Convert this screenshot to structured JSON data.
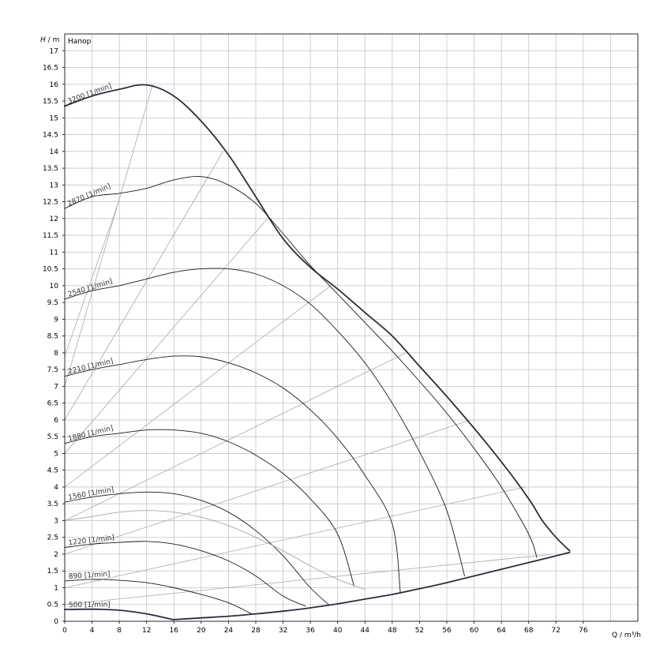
{
  "chart_data": {
    "type": "line",
    "panel_label": "Напор",
    "ylabel_symbol": "H",
    "ylabel_unit": "/ m",
    "xlabel": "Q / m³/h",
    "xlim": [
      0,
      84
    ],
    "ylim": [
      0,
      17.5
    ],
    "x_ticks": [
      0,
      4,
      8,
      12,
      16,
      20,
      24,
      28,
      32,
      36,
      40,
      44,
      48,
      52,
      56,
      60,
      64,
      68,
      72,
      76
    ],
    "y_ticks": [
      0,
      0.5,
      1,
      1.5,
      2,
      2.5,
      3,
      3.5,
      4,
      4.5,
      5,
      5.5,
      6,
      6.5,
      7,
      7.5,
      8,
      8.5,
      9,
      9.5,
      10,
      10.5,
      11,
      11.5,
      12,
      12.5,
      13,
      13.5,
      14,
      14.5,
      15,
      15.5,
      16,
      16.5,
      17
    ],
    "grid": true,
    "colors": {
      "speed_curve": "#1a1a1a",
      "envelope": "#2a2f3a",
      "efficiency_ray": "#a8a8a8",
      "grid": "#c4c4c4"
    },
    "series": [
      {
        "name": "3200 [1/min]",
        "kind": "speed",
        "x": [
          0,
          4,
          8,
          12,
          16,
          20,
          24,
          28,
          32,
          36,
          40,
          44,
          48,
          52,
          56,
          60,
          64,
          68,
          70,
          72,
          74
        ],
        "y": [
          15.35,
          15.65,
          15.85,
          15.98,
          15.65,
          14.9,
          13.9,
          12.65,
          11.4,
          10.55,
          9.9,
          9.2,
          8.5,
          7.6,
          6.7,
          5.75,
          4.75,
          3.65,
          3.0,
          2.5,
          2.1
        ]
      },
      {
        "name": "2870 [1/min]",
        "kind": "speed",
        "x": [
          0,
          4,
          8,
          12,
          16,
          20,
          24,
          28,
          32,
          36,
          40,
          44,
          48,
          52,
          56,
          60,
          64,
          68,
          69.2
        ],
        "y": [
          12.3,
          12.65,
          12.75,
          12.9,
          13.15,
          13.25,
          13.0,
          12.45,
          11.55,
          10.6,
          9.75,
          8.9,
          8.05,
          7.15,
          6.2,
          5.15,
          4.0,
          2.6,
          1.9
        ]
      },
      {
        "name": "2540 [1/min]",
        "kind": "speed",
        "x": [
          0,
          4,
          8,
          12,
          16,
          20,
          24,
          28,
          32,
          36,
          40,
          44,
          48,
          52,
          56,
          58.6
        ],
        "y": [
          9.6,
          9.85,
          10.0,
          10.2,
          10.4,
          10.5,
          10.5,
          10.35,
          10.0,
          9.45,
          8.65,
          7.7,
          6.5,
          5.05,
          3.3,
          1.35
        ]
      },
      {
        "name": "2210 [1/min]",
        "kind": "speed",
        "x": [
          0,
          4,
          8,
          12,
          16,
          20,
          24,
          28,
          32,
          36,
          40,
          44,
          48,
          49.2
        ],
        "y": [
          7.3,
          7.5,
          7.65,
          7.8,
          7.9,
          7.88,
          7.7,
          7.4,
          6.95,
          6.3,
          5.45,
          4.35,
          2.9,
          0.85
        ]
      },
      {
        "name": "1880 [1/min]",
        "kind": "speed",
        "x": [
          0,
          4,
          8,
          12,
          16,
          20,
          24,
          28,
          32,
          36,
          40,
          42.4
        ],
        "y": [
          5.3,
          5.5,
          5.6,
          5.7,
          5.7,
          5.6,
          5.35,
          4.95,
          4.4,
          3.65,
          2.6,
          1.05
        ]
      },
      {
        "name": "1560 [1/min]",
        "kind": "speed",
        "x": [
          0,
          4,
          8,
          12,
          16,
          20,
          24,
          28,
          32,
          36,
          38.8
        ],
        "y": [
          3.55,
          3.7,
          3.8,
          3.85,
          3.8,
          3.6,
          3.25,
          2.7,
          1.95,
          1.0,
          0.48
        ]
      },
      {
        "name": "",
        "kind": "speed-light",
        "x": [
          0,
          4,
          8,
          12,
          16,
          20,
          24,
          28,
          32,
          36,
          40,
          44
        ],
        "y": [
          3.0,
          3.12,
          3.25,
          3.3,
          3.25,
          3.1,
          2.85,
          2.5,
          2.1,
          1.65,
          1.25,
          0.95
        ]
      },
      {
        "name": "1220 [1/min]",
        "kind": "speed",
        "x": [
          0,
          4,
          8,
          12,
          16,
          20,
          24,
          28,
          32,
          35.3
        ],
        "y": [
          2.2,
          2.3,
          2.35,
          2.38,
          2.3,
          2.1,
          1.8,
          1.35,
          0.75,
          0.45
        ]
      },
      {
        "name": "890 [1/min]",
        "kind": "speed",
        "x": [
          0,
          4,
          8,
          12,
          16,
          20,
          24,
          27.4
        ],
        "y": [
          1.2,
          1.25,
          1.22,
          1.15,
          1.0,
          0.8,
          0.55,
          0.22
        ]
      },
      {
        "name": "500 [1/min]",
        "kind": "speed-thick",
        "x": [
          0,
          4,
          8,
          12,
          15.9
        ],
        "y": [
          0.35,
          0.36,
          0.33,
          0.22,
          0.05
        ]
      },
      {
        "name": "",
        "kind": "envelope-lower",
        "x": [
          15.9,
          20,
          24,
          28,
          32,
          36,
          40,
          44,
          48,
          52,
          56,
          60,
          64,
          68,
          72,
          74
        ],
        "y": [
          0.05,
          0.1,
          0.15,
          0.22,
          0.3,
          0.4,
          0.52,
          0.66,
          0.8,
          0.97,
          1.15,
          1.35,
          1.55,
          1.75,
          1.95,
          2.05
        ]
      }
    ],
    "efficiency_rays": [
      {
        "x": [
          0,
          12.9
        ],
        "y": [
          7.0,
          16.0
        ]
      },
      {
        "x": [
          0,
          23.2
        ],
        "y": [
          6.0,
          14.0
        ]
      },
      {
        "x": [
          0,
          29.7
        ],
        "y": [
          5.0,
          12.0
        ]
      },
      {
        "x": [
          0,
          39.0
        ],
        "y": [
          4.0,
          10.0
        ]
      },
      {
        "x": [
          0,
          50.0
        ],
        "y": [
          3.0,
          8.0
        ]
      },
      {
        "x": [
          0,
          59.5
        ],
        "y": [
          2.0,
          6.0
        ]
      },
      {
        "x": [
          0,
          67.5
        ],
        "y": [
          1.0,
          4.0
        ]
      },
      {
        "x": [
          0,
          71.5
        ],
        "y": [
          0.5,
          2.0
        ]
      },
      {
        "x": [
          0,
          7.9
        ],
        "y": [
          7.9,
          12.5
        ]
      },
      {
        "x": [
          44,
          44
        ],
        "y": [
          0.95,
          0.95
        ]
      }
    ]
  }
}
